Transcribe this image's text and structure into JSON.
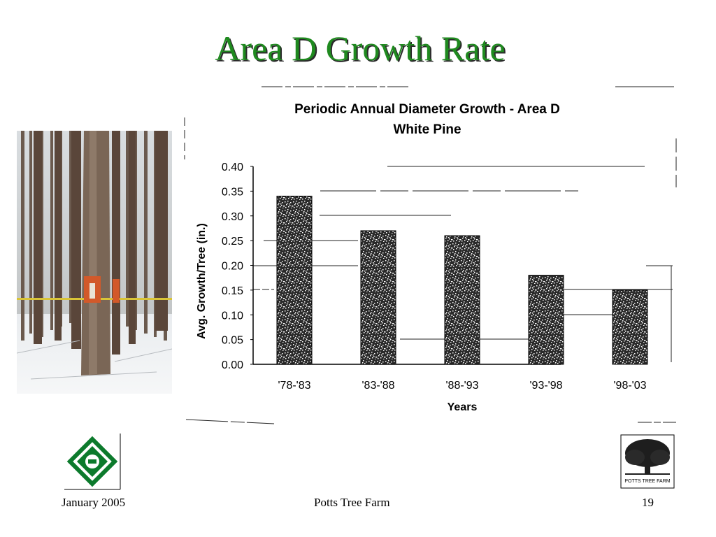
{
  "slide": {
    "title": "Area D Growth Rate"
  },
  "footer": {
    "date": "January 2005",
    "center": "Potts Tree Farm",
    "page": "19"
  },
  "logos": {
    "right_text": "POTTS TREE FARM"
  },
  "colors": {
    "title": "#1f8a1f",
    "bar_fill": "#2a2a2a"
  },
  "chart_data": {
    "type": "bar",
    "title": "Periodic Annual Diameter Growth - Area D",
    "subtitle": "White Pine",
    "xlabel": "Years",
    "ylabel": "Avg. Growth/Tree (in.)",
    "categories": [
      "'78-'83",
      "'83-'88",
      "'88-'93",
      "'93-'98",
      "'98-'03"
    ],
    "values": [
      0.34,
      0.27,
      0.26,
      0.18,
      0.15
    ],
    "ylim": [
      0,
      0.4
    ],
    "yticks": [
      "0.00",
      "0.05",
      "0.10",
      "0.15",
      "0.20",
      "0.25",
      "0.30",
      "0.35",
      "0.40"
    ],
    "legend": "none"
  }
}
